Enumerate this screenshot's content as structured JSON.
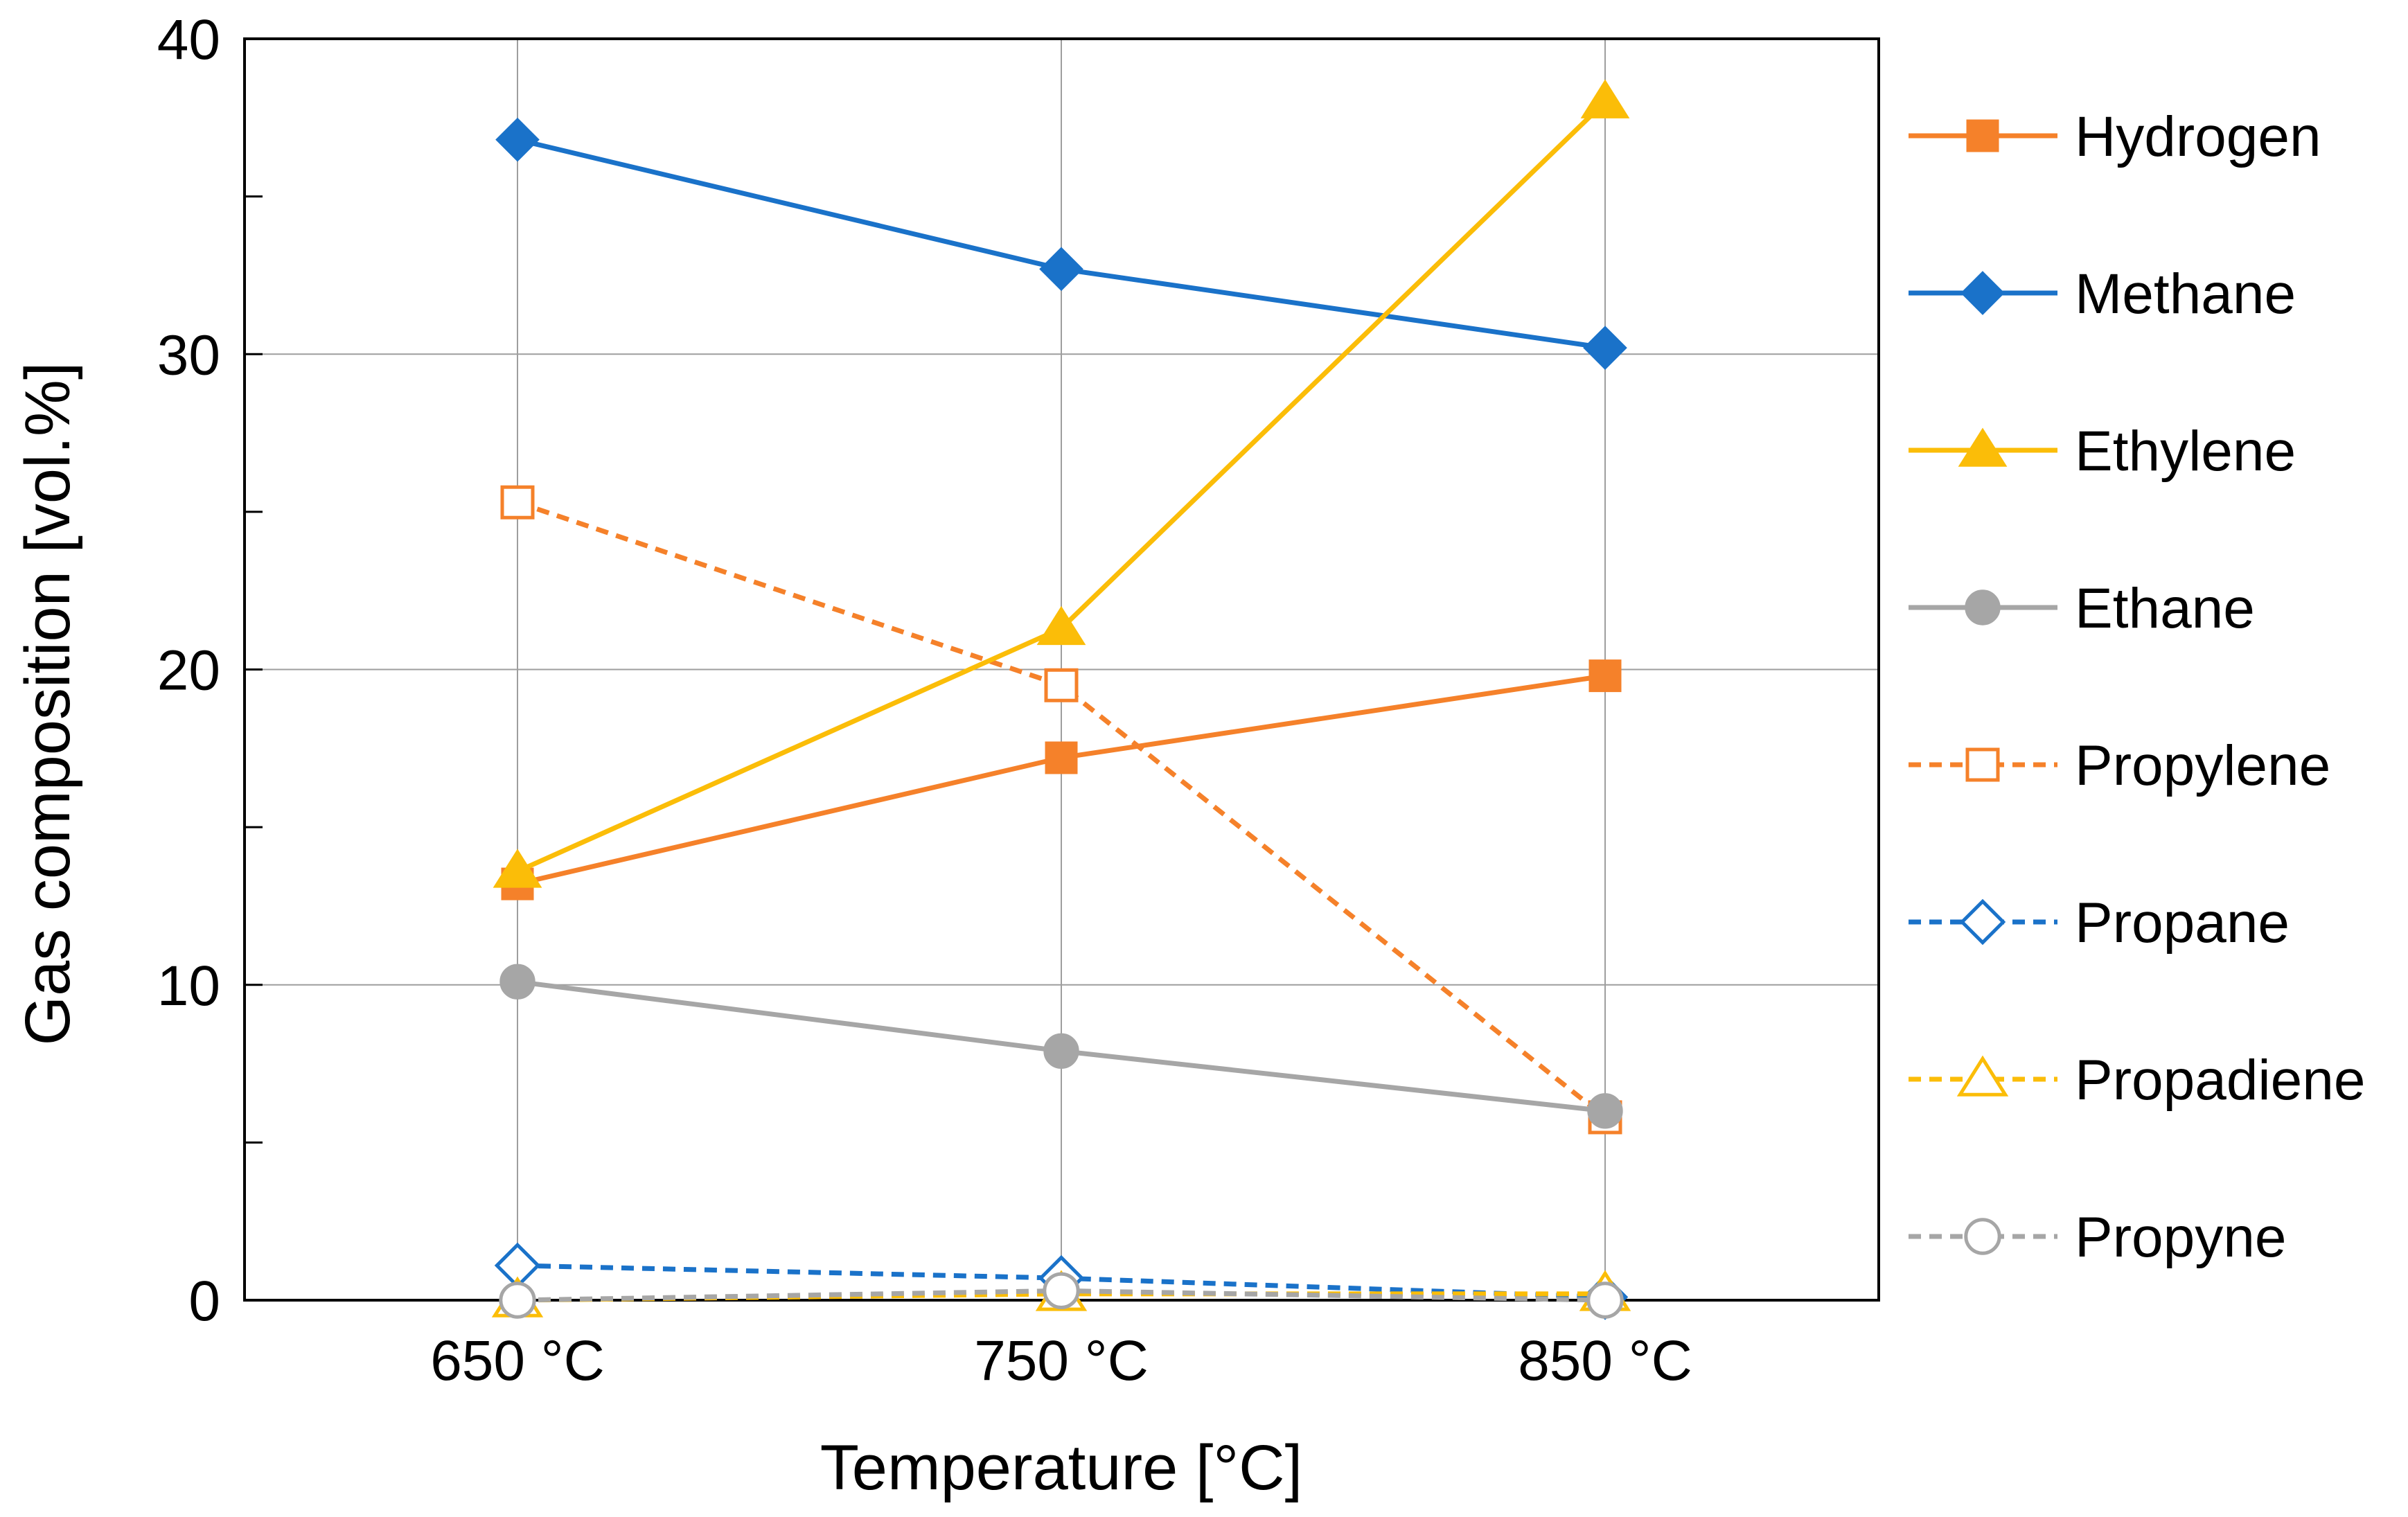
{
  "chart_data": {
    "type": "line",
    "title": "",
    "xlabel": "Temperature [°C]",
    "ylabel": "Gas composition [vol.%]",
    "categories": [
      "650 °C",
      "750 °C",
      "850 °C"
    ],
    "ylim": [
      0,
      40
    ],
    "yticks": [
      0,
      10,
      20,
      30,
      40
    ],
    "grid": true,
    "legend_position": "right",
    "series": [
      {
        "name": "Hydrogen",
        "values": [
          13.2,
          17.2,
          19.8
        ],
        "color": "#f5812a",
        "marker": "square",
        "filled": true,
        "dashed": false
      },
      {
        "name": "Methane",
        "values": [
          36.8,
          32.7,
          30.2
        ],
        "color": "#1a72c9",
        "marker": "diamond",
        "filled": true,
        "dashed": false
      },
      {
        "name": "Ethylene",
        "values": [
          13.6,
          21.3,
          38.0
        ],
        "color": "#fbbd08",
        "marker": "triangle",
        "filled": true,
        "dashed": false
      },
      {
        "name": "Ethane",
        "values": [
          10.1,
          7.9,
          6.0
        ],
        "color": "#a6a6a6",
        "marker": "circle",
        "filled": true,
        "dashed": false
      },
      {
        "name": "Propylene",
        "values": [
          25.3,
          19.5,
          5.8
        ],
        "color": "#f5812a",
        "marker": "square",
        "filled": false,
        "dashed": true
      },
      {
        "name": "Propane",
        "values": [
          1.1,
          0.7,
          0.1
        ],
        "color": "#1a72c9",
        "marker": "diamond",
        "filled": false,
        "dashed": true
      },
      {
        "name": "Propadiene",
        "values": [
          0.0,
          0.2,
          0.2
        ],
        "color": "#fbbd08",
        "marker": "triangle",
        "filled": false,
        "dashed": true
      },
      {
        "name": "Propyne",
        "values": [
          0.0,
          0.3,
          0.0
        ],
        "color": "#a6a6a6",
        "marker": "circle",
        "filled": false,
        "dashed": true
      }
    ]
  }
}
